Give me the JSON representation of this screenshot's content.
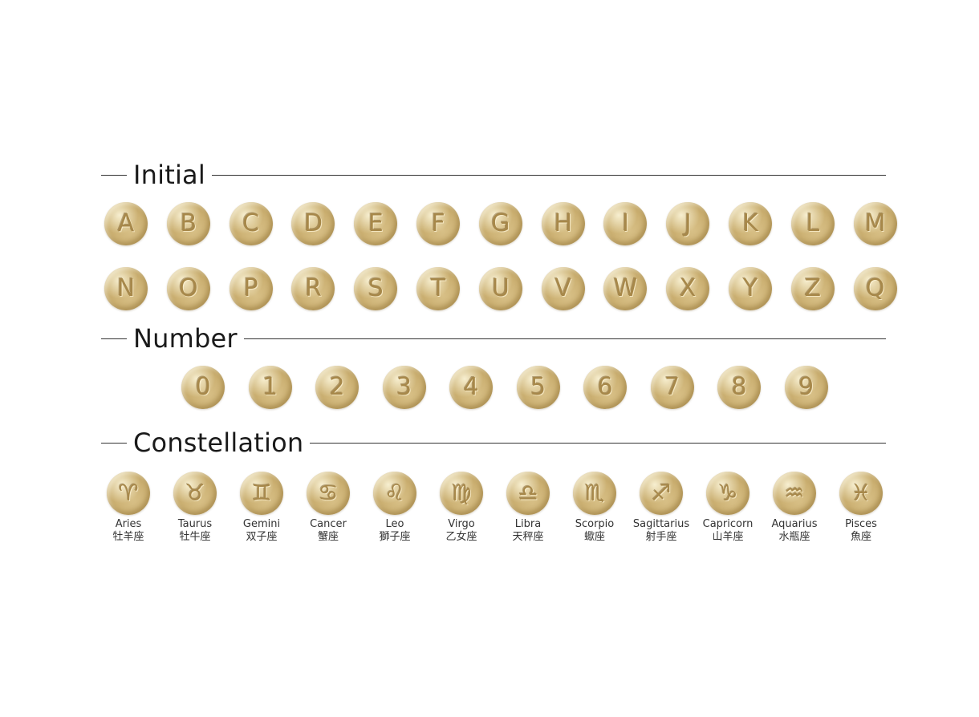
{
  "sections": {
    "initial": "Initial",
    "number": "Number",
    "constellation": "Constellation"
  },
  "letters_row1": [
    "A",
    "B",
    "C",
    "D",
    "E",
    "F",
    "G",
    "H",
    "I",
    "J",
    "K",
    "L",
    "M"
  ],
  "letters_row2": [
    "N",
    "O",
    "P",
    "R",
    "S",
    "T",
    "U",
    "V",
    "W",
    "X",
    "Y",
    "Z",
    "Q"
  ],
  "numbers": [
    "0",
    "1",
    "2",
    "3",
    "4",
    "5",
    "6",
    "7",
    "8",
    "9"
  ],
  "signs": [
    {
      "symbol": "♈",
      "name": "Aries",
      "jp": "牡羊座"
    },
    {
      "symbol": "♉",
      "name": "Taurus",
      "jp": "牡牛座"
    },
    {
      "symbol": "♊",
      "name": "Gemini",
      "jp": "双子座"
    },
    {
      "symbol": "♋",
      "name": "Cancer",
      "jp": "蟹座"
    },
    {
      "symbol": "♌",
      "name": "Leo",
      "jp": "獅子座"
    },
    {
      "symbol": "♍",
      "name": "Virgo",
      "jp": "乙女座"
    },
    {
      "symbol": "♎",
      "name": "Libra",
      "jp": "天秤座"
    },
    {
      "symbol": "♏",
      "name": "Scorpio",
      "jp": "蠍座"
    },
    {
      "symbol": "♐",
      "name": "Sagittarius",
      "jp": "射手座"
    },
    {
      "symbol": "♑",
      "name": "Capricorn",
      "jp": "山羊座"
    },
    {
      "symbol": "♒",
      "name": "Aquarius",
      "jp": "水瓶座"
    },
    {
      "symbol": "♓",
      "name": "Pisces",
      "jp": "魚座"
    }
  ]
}
